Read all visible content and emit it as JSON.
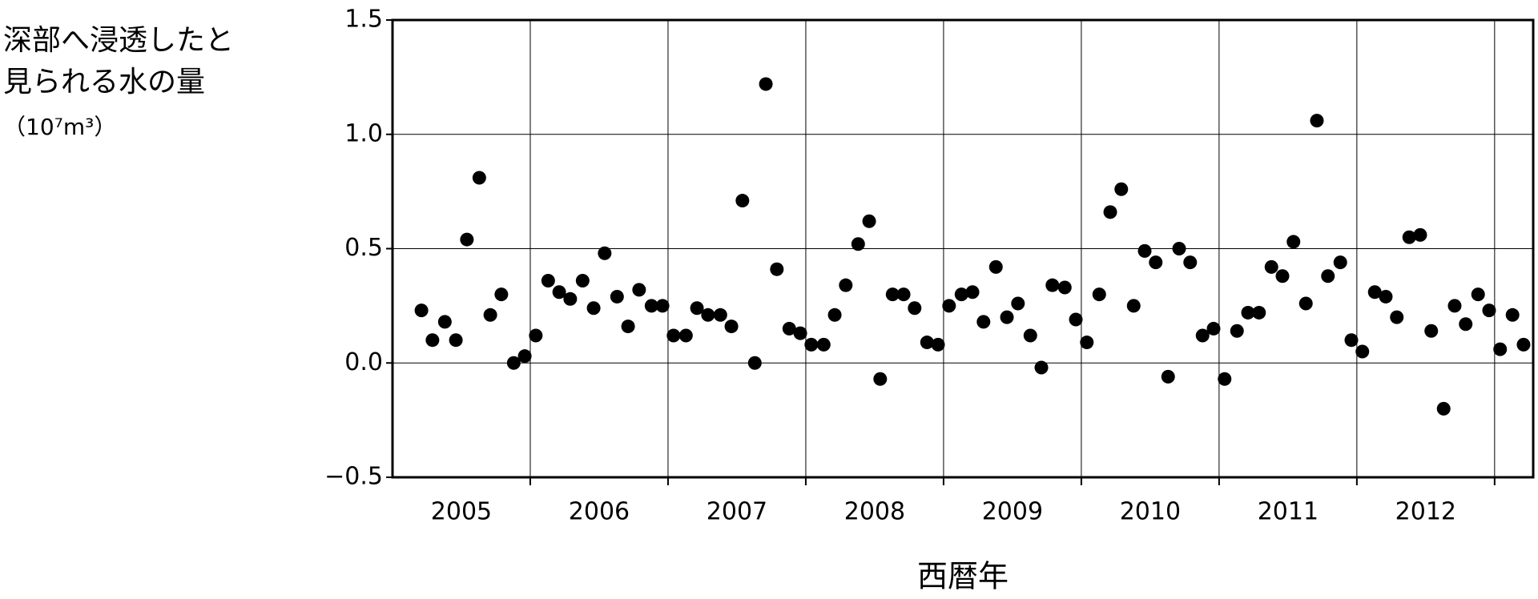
{
  "chart_data": {
    "type": "scatter",
    "ylabel": [
      "深部へ浸透したと",
      "見られる水の量",
      "（10⁷m³）"
    ],
    "xlabel": "西暦年",
    "color": "#000000",
    "grid": true,
    "xlim": [
      2005,
      2013.28
    ],
    "ylim": [
      -0.5,
      1.5
    ],
    "yticks": [
      1.5,
      {
        "value": 1.0,
        "label": "1.0"
      },
      0.5,
      {
        "value": 0.0,
        "label": "0.0"
      },
      {
        "value": -0.5,
        "label": "−0.5"
      }
    ],
    "xticks": [
      {
        "value": 2005.5,
        "label": "2005"
      },
      {
        "value": 2006.5,
        "label": "2006"
      },
      {
        "value": 2007.5,
        "label": "2007"
      },
      {
        "value": 2008.5,
        "label": "2008"
      },
      {
        "value": 2009.5,
        "label": "2009"
      },
      {
        "value": 2010.5,
        "label": "2010"
      },
      {
        "value": 2011.5,
        "label": "2011"
      },
      {
        "value": 2012.5,
        "label": "2012"
      }
    ],
    "xgrid": [
      2006,
      2007,
      2008,
      2009,
      2010,
      2011,
      2012,
      2013
    ],
    "x": [
      2005.21,
      2005.29,
      2005.38,
      2005.46,
      2005.54,
      2005.63,
      2005.71,
      2005.79,
      2005.88,
      2005.96,
      2006.04,
      2006.13,
      2006.21,
      2006.29,
      2006.38,
      2006.46,
      2006.54,
      2006.63,
      2006.71,
      2006.79,
      2006.88,
      2006.96,
      2007.04,
      2007.13,
      2007.21,
      2007.29,
      2007.38,
      2007.46,
      2007.54,
      2007.63,
      2007.71,
      2007.79,
      2007.88,
      2007.96,
      2008.04,
      2008.13,
      2008.21,
      2008.29,
      2008.38,
      2008.46,
      2008.54,
      2008.63,
      2008.71,
      2008.79,
      2008.88,
      2008.96,
      2009.04,
      2009.13,
      2009.21,
      2009.29,
      2009.38,
      2009.46,
      2009.54,
      2009.63,
      2009.71,
      2009.79,
      2009.88,
      2009.96,
      2010.04,
      2010.13,
      2010.21,
      2010.29,
      2010.38,
      2010.46,
      2010.54,
      2010.63,
      2010.71,
      2010.79,
      2010.88,
      2010.96,
      2011.04,
      2011.13,
      2011.21,
      2011.29,
      2011.38,
      2011.46,
      2011.54,
      2011.63,
      2011.71,
      2011.79,
      2011.88,
      2011.96,
      2012.04,
      2012.13,
      2012.21,
      2012.29,
      2012.38,
      2012.46,
      2012.54,
      2012.63,
      2012.71,
      2012.79,
      2012.88,
      2012.96,
      2013.04,
      2013.13,
      2013.21
    ],
    "values": [
      0.23,
      0.1,
      0.18,
      0.1,
      0.54,
      0.81,
      0.21,
      0.3,
      0.0,
      0.03,
      0.12,
      0.36,
      0.31,
      0.28,
      0.36,
      0.24,
      0.48,
      0.29,
      0.16,
      0.32,
      0.25,
      0.25,
      0.12,
      0.12,
      0.24,
      0.21,
      0.21,
      0.16,
      0.71,
      0.0,
      1.22,
      0.41,
      0.15,
      0.13,
      0.08,
      0.08,
      0.21,
      0.34,
      0.52,
      0.62,
      -0.07,
      0.3,
      0.3,
      0.24,
      0.09,
      0.08,
      0.25,
      0.3,
      0.31,
      0.18,
      0.42,
      0.2,
      0.26,
      0.12,
      -0.02,
      0.34,
      0.33,
      0.19,
      0.09,
      0.3,
      0.66,
      0.76,
      0.25,
      0.49,
      0.44,
      -0.06,
      0.5,
      0.44,
      0.12,
      0.15,
      -0.07,
      0.14,
      0.22,
      0.22,
      0.42,
      0.38,
      0.53,
      0.26,
      1.06,
      0.38,
      0.44,
      0.1,
      0.05,
      0.31,
      0.29,
      0.2,
      0.55,
      0.56,
      0.14,
      -0.2,
      0.25,
      0.17,
      0.3,
      0.23,
      0.06,
      0.21,
      0.08
    ]
  }
}
